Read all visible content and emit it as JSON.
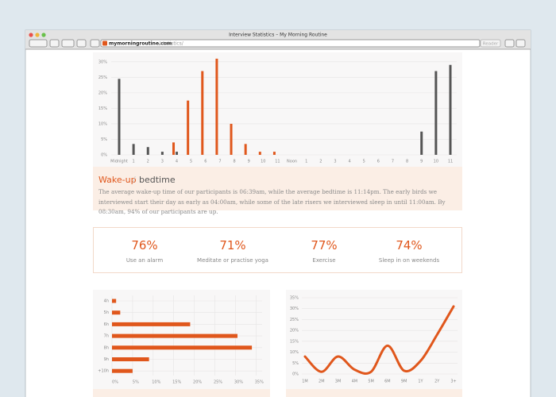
{
  "browser": {
    "title": "Interview Statistics – My Morning Routine",
    "url_domain": "mymorningroutine.com",
    "url_path": "/statistics/",
    "reader": "Reader"
  },
  "chart_data": [
    {
      "type": "bar",
      "series": [
        {
          "name": "Wake-up",
          "color": "#e0571c",
          "values": [
            null,
            null,
            null,
            null,
            4,
            17.5,
            27,
            31,
            10,
            3.5,
            1,
            1,
            null,
            null,
            null,
            null,
            null,
            null,
            null,
            null,
            null,
            null,
            null,
            null
          ]
        },
        {
          "name": "bedtime",
          "color": "#555555",
          "values": [
            24.5,
            3.5,
            2.5,
            1,
            1,
            null,
            null,
            null,
            null,
            null,
            null,
            null,
            null,
            null,
            null,
            null,
            null,
            null,
            null,
            null,
            null,
            7.5,
            27,
            29
          ]
        }
      ],
      "categories": [
        "Midnight",
        "1",
        "2",
        "3",
        "4",
        "5",
        "6",
        "7",
        "8",
        "9",
        "10",
        "11",
        "Noon",
        "1",
        "2",
        "3",
        "4",
        "5",
        "6",
        "7",
        "8",
        "9",
        "10",
        "11"
      ],
      "ylim": [
        0,
        32
      ],
      "yticks": [
        {
          "value": 0,
          "label": "0%"
        },
        {
          "value": 5,
          "label": "5%"
        },
        {
          "value": 10,
          "label": "10%"
        },
        {
          "value": 15,
          "label": "15%"
        },
        {
          "value": 20,
          "label": "20%"
        },
        {
          "value": 25,
          "label": "25%"
        },
        {
          "value": 30,
          "label": "30%"
        }
      ],
      "grid": true,
      "separator": "/",
      "description": "The average wake-up time of our participants is 06:39am, while the average bedtime is 11:14pm. The early birds we interviewed start their day as early as 04:00am, while some of the late risers we interviewed sleep in until 11:00am. By 08:30am, 94% of our participants are up."
    },
    {
      "type": "hbar",
      "color": "#e0571c",
      "categories": [
        "4h",
        "5h",
        "6h",
        "7h",
        "8h",
        "9h",
        "+10h"
      ],
      "values": [
        1,
        2,
        19,
        30.5,
        34,
        9,
        5
      ],
      "xlim": [
        0,
        35
      ],
      "xticks": [
        {
          "value": 0,
          "label": "0%"
        },
        {
          "value": 5,
          "label": "5%"
        },
        {
          "value": 10,
          "label": "10%"
        },
        {
          "value": 15,
          "label": "15%"
        },
        {
          "value": 20,
          "label": "20%"
        },
        {
          "value": 25,
          "label": "25%"
        },
        {
          "value": 30,
          "label": "30%"
        },
        {
          "value": 35,
          "label": "35%"
        }
      ],
      "grid": true
    },
    {
      "type": "line",
      "color": "#e0571c",
      "categories": [
        "1M",
        "2M",
        "3M",
        "4M",
        "5M",
        "6M",
        "9M",
        "1Y",
        "2Y",
        "3+"
      ],
      "values": [
        8,
        1,
        8,
        2,
        1,
        13,
        1.5,
        6,
        18,
        31
      ],
      "ylim": [
        0,
        35
      ],
      "yticks": [
        {
          "value": 0,
          "label": "0%"
        },
        {
          "value": 5,
          "label": "5%"
        },
        {
          "value": 10,
          "label": "10%"
        },
        {
          "value": 15,
          "label": "15%"
        },
        {
          "value": 20,
          "label": "20%"
        },
        {
          "value": 25,
          "label": "25%"
        },
        {
          "value": 30,
          "label": "30%"
        },
        {
          "value": 35,
          "label": "35%"
        }
      ],
      "grid": true
    }
  ],
  "stats": [
    {
      "value": "76%",
      "label": "Use an alarm"
    },
    {
      "value": "71%",
      "label": "Meditate or practise yoga"
    },
    {
      "value": "77%",
      "label": "Exercise"
    },
    {
      "value": "74%",
      "label": "Sleep in on weekends"
    }
  ]
}
